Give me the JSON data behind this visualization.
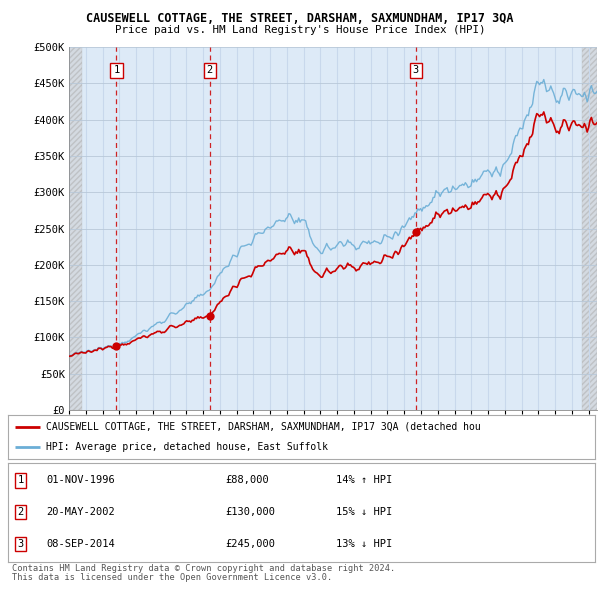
{
  "title1": "CAUSEWELL COTTAGE, THE STREET, DARSHAM, SAXMUNDHAM, IP17 3QA",
  "title2": "Price paid vs. HM Land Registry's House Price Index (HPI)",
  "ylim": [
    0,
    500000
  ],
  "yticks": [
    0,
    50000,
    100000,
    150000,
    200000,
    250000,
    300000,
    350000,
    400000,
    450000,
    500000
  ],
  "ytick_labels": [
    "£0",
    "£50K",
    "£100K",
    "£150K",
    "£200K",
    "£250K",
    "£300K",
    "£350K",
    "£400K",
    "£450K",
    "£500K"
  ],
  "xlim_start": 1994.0,
  "xlim_end": 2025.5,
  "hpi_color": "#6baed6",
  "price_color": "#cc0000",
  "sale_dates": [
    1996.833,
    2002.385,
    2014.675
  ],
  "sale_prices": [
    88000,
    130000,
    245000
  ],
  "sale_labels": [
    "1",
    "2",
    "3"
  ],
  "legend_line1": "CAUSEWELL COTTAGE, THE STREET, DARSHAM, SAXMUNDHAM, IP17 3QA (detached hou",
  "legend_line2": "HPI: Average price, detached house, East Suffolk",
  "table_rows": [
    {
      "num": "1",
      "date": "01-NOV-1996",
      "price": "£88,000",
      "hpi": "14% ↑ HPI"
    },
    {
      "num": "2",
      "date": "20-MAY-2002",
      "price": "£130,000",
      "hpi": "15% ↓ HPI"
    },
    {
      "num": "3",
      "date": "08-SEP-2014",
      "price": "£245,000",
      "hpi": "13% ↓ HPI"
    }
  ],
  "footnote1": "Contains HM Land Registry data © Crown copyright and database right 2024.",
  "footnote2": "This data is licensed under the Open Government Licence v3.0.",
  "grid_color": "#c8d8ec",
  "bg_color": "#ddeaf7",
  "hatch_bg": "#e8e8e8"
}
